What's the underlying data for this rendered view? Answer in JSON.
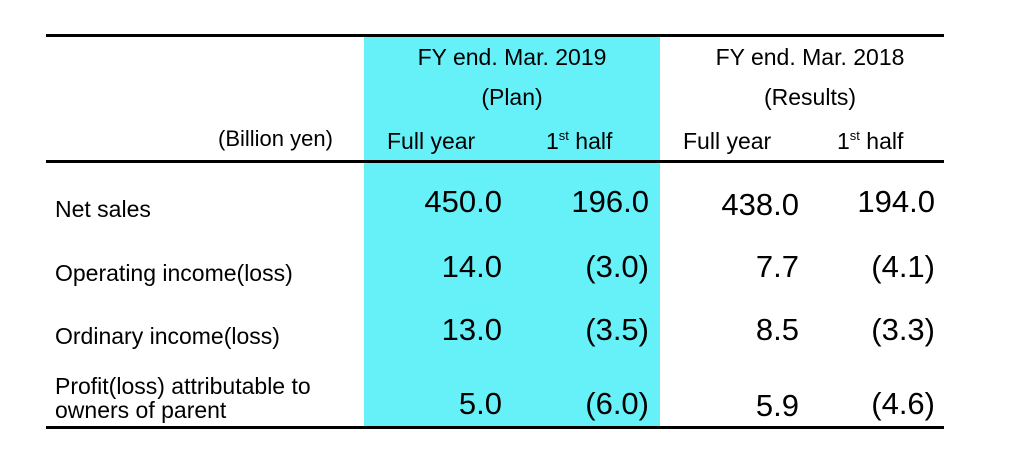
{
  "header": {
    "plan_title": "FY end. Mar. 2019",
    "plan_sub": "(Plan)",
    "results_title": "FY end. Mar. 2018",
    "results_sub": "(Results)",
    "unit": "(Billion yen)",
    "full_year": "Full year",
    "half_num": "1",
    "half_sup": "st",
    "half_word": " half"
  },
  "rows": [
    {
      "label": "Net sales",
      "plan_full": "450.0",
      "plan_half": "196.0",
      "res_full": "438.0",
      "res_half": "194.0"
    },
    {
      "label": "Operating income(loss)",
      "plan_full": "14.0",
      "plan_half": "(3.0)",
      "res_full": "7.7",
      "res_half": "(4.1)"
    },
    {
      "label": "Ordinary income(loss)",
      "plan_full": "13.0",
      "plan_half": "(3.5)",
      "res_full": "8.5",
      "res_half": "(3.3)"
    },
    {
      "label_line1": "Profit(loss) attributable to",
      "label_line2": "owners of parent",
      "plan_full": "5.0",
      "plan_half": "(6.0)",
      "res_full": "5.9",
      "res_half": "(4.6)"
    }
  ],
  "colors": {
    "highlight": "#66f0f7",
    "rule": "#000000"
  }
}
